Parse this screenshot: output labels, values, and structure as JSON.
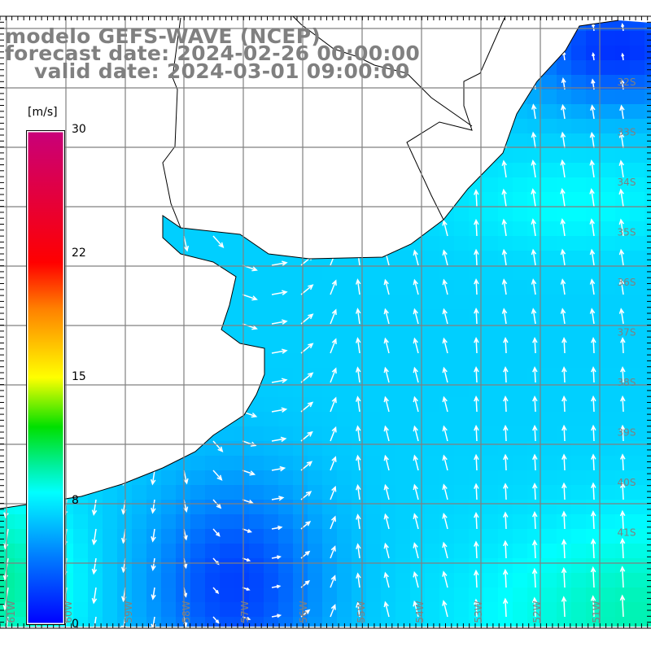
{
  "title": {
    "model": "modelo GEFS-WAVE (NCEP)",
    "forecast": "forecast date: 2024-02-26 00:00:00",
    "valid": "valid date: 2024-03-01 09:00:00"
  },
  "colorbar": {
    "unit": "[m/s]",
    "labels": [
      "30",
      "22",
      "15",
      "8",
      "0"
    ],
    "colors": [
      "#0000ff",
      "#00ffff",
      "#00e000",
      "#ffff00",
      "#ff0000",
      "#c8007a"
    ]
  },
  "lat_labels": [
    "32S",
    "33S",
    "34S",
    "35S",
    "36S",
    "37S",
    "38S",
    "39S",
    "40S",
    "41S"
  ],
  "lon_labels": [
    "61W",
    "60W",
    "59W",
    "58W",
    "57W",
    "56W",
    "55W",
    "54W",
    "53W",
    "52W",
    "51W"
  ]
}
